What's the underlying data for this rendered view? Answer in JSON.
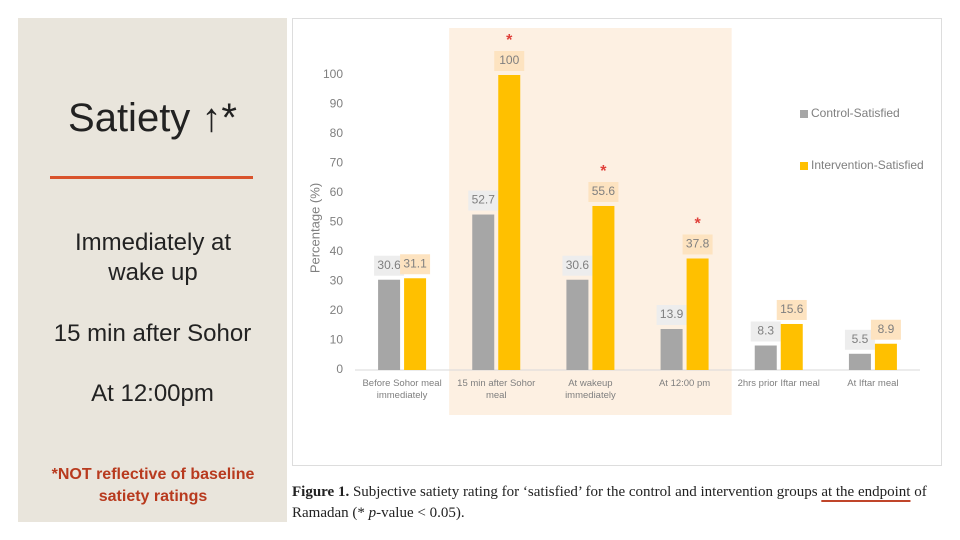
{
  "slide": {
    "title": "Satiety ↑*",
    "items": [
      "Immediately at wake up",
      "15 min after Sohor",
      "At 12:00pm"
    ],
    "note": "*NOT reflective of baseline satiety ratings"
  },
  "chart_data": {
    "type": "bar",
    "ylabel": "Percentage (%)",
    "categories": [
      "Before Sohor meal immediately",
      "15 min after Sohor meal",
      "At wakeup immediately",
      "At 12:00 pm",
      "2hrs prior Iftar meal",
      "At Iftar meal"
    ],
    "series": [
      {
        "name": "Control-Satisfied",
        "color": "#a6a6a6",
        "values": [
          30.6,
          52.7,
          30.6,
          13.9,
          8.3,
          5.5
        ]
      },
      {
        "name": "Intervention-Satisfied",
        "color": "#ffc000",
        "values": [
          31.1,
          100,
          55.6,
          37.8,
          15.6,
          8.9
        ]
      }
    ],
    "markers": [
      null,
      "*",
      "*",
      "*",
      null,
      null
    ],
    "ylim": [
      0,
      100
    ],
    "yticks": [
      0,
      10,
      20,
      30,
      40,
      50,
      60,
      70,
      80,
      90,
      100
    ],
    "grid": false,
    "legend": "right"
  },
  "caption": {
    "label": "Figure 1.",
    "text": " Subjective satiety rating for ‘satisfied’ for the control and intervention groups ",
    "underlined": "at the endpoint",
    "text2": " of Ramadan (* ",
    "italic": "p",
    "text3": "-value < 0.05)."
  }
}
